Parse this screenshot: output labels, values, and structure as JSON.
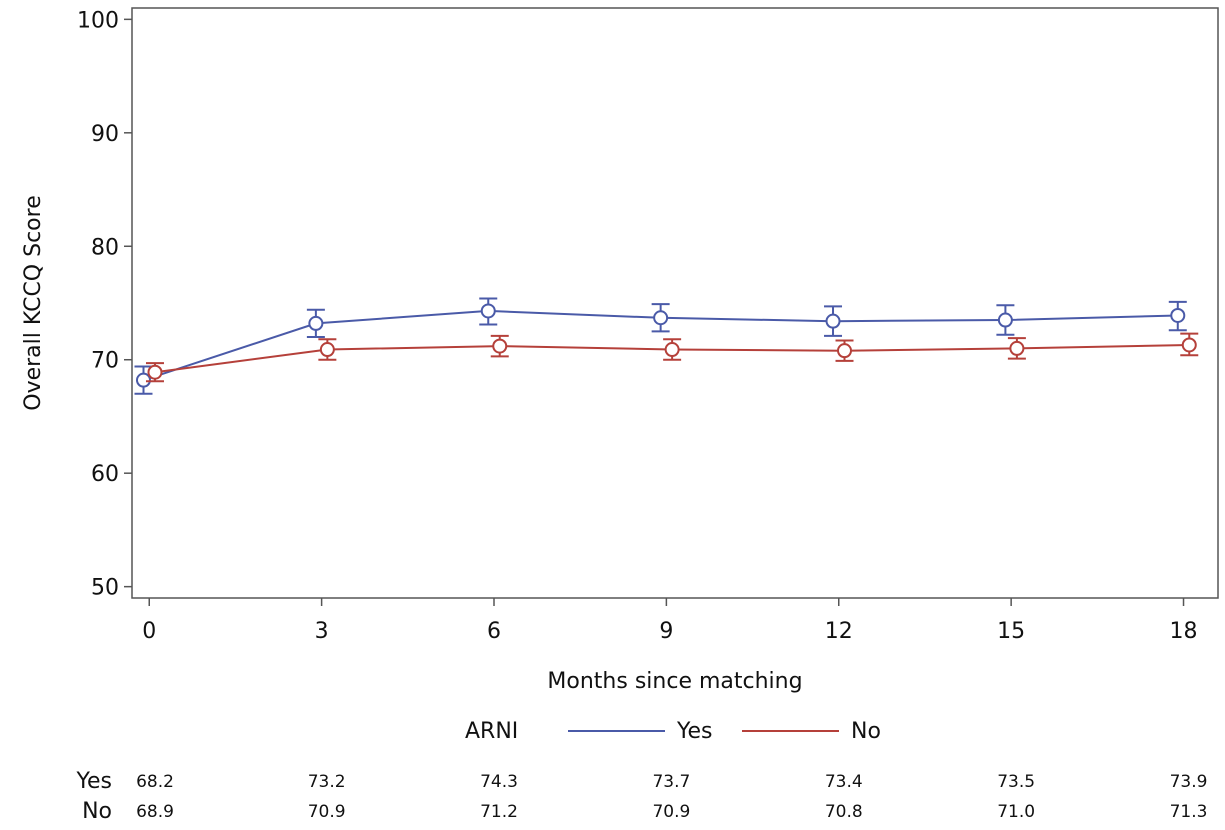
{
  "chart_data": {
    "type": "line",
    "xlabel": "Months since matching",
    "ylabel": "Overall KCCQ Score",
    "x": [
      0,
      3,
      6,
      9,
      12,
      15,
      18
    ],
    "xticks": [
      "0",
      "3",
      "6",
      "9",
      "12",
      "15",
      "18"
    ],
    "yticks": [
      "50",
      "60",
      "70",
      "80",
      "90",
      "100"
    ],
    "ylim": [
      49,
      101
    ],
    "xlim": [
      -0.3,
      18.6
    ],
    "grid": false,
    "legend": {
      "title": "ARNI",
      "placement": "bottom",
      "entries": [
        "Yes",
        "No"
      ]
    },
    "series": [
      {
        "name": "Yes",
        "color": "#4a5aa8",
        "values": [
          68.2,
          73.2,
          74.3,
          73.7,
          73.4,
          73.5,
          73.9
        ],
        "lower": [
          67.0,
          72.0,
          73.1,
          72.5,
          72.1,
          72.2,
          72.6
        ],
        "upper": [
          69.4,
          74.4,
          75.4,
          74.9,
          74.7,
          74.8,
          75.1
        ]
      },
      {
        "name": "No",
        "color": "#b5403a",
        "values": [
          68.9,
          70.9,
          71.2,
          70.9,
          70.8,
          71.0,
          71.3
        ],
        "lower": [
          68.1,
          70.0,
          70.3,
          70.0,
          69.9,
          70.1,
          70.4
        ],
        "upper": [
          69.7,
          71.8,
          72.1,
          71.8,
          71.7,
          71.9,
          72.3
        ]
      }
    ],
    "table": {
      "rows": [
        {
          "label": "Yes",
          "values": [
            "68.2",
            "73.2",
            "74.3",
            "73.7",
            "73.4",
            "73.5",
            "73.9"
          ]
        },
        {
          "label": "No",
          "values": [
            "68.9",
            "70.9",
            "71.2",
            "70.9",
            "70.8",
            "71.0",
            "71.3"
          ]
        }
      ]
    }
  }
}
